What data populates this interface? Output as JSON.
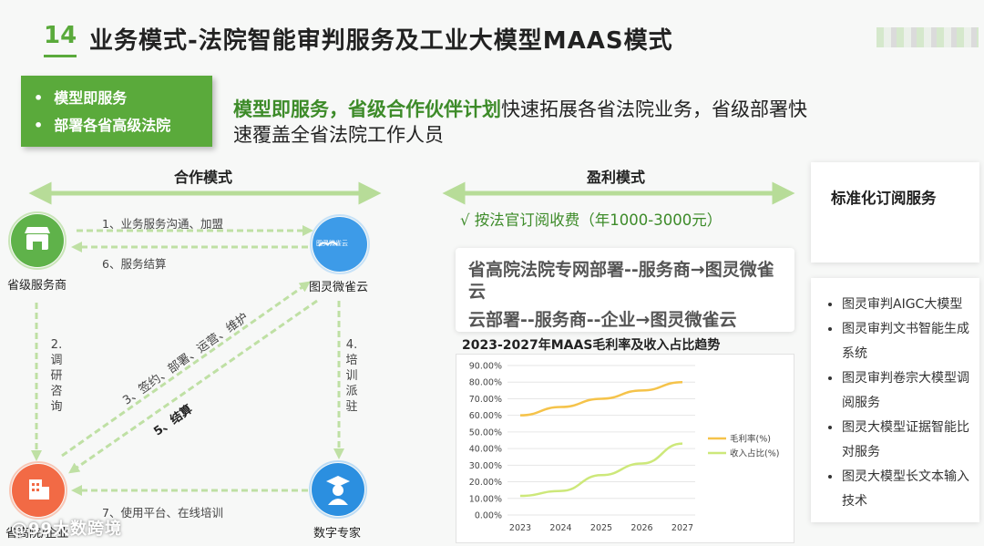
{
  "header": {
    "number": "14",
    "title": "业务模式-法院智能审判服务及工业大模型MAAS模式"
  },
  "green_box": {
    "items": [
      "模型即服务",
      "部署各省高级法院"
    ]
  },
  "headline": {
    "highlight": "模型即服务，省级合作伙伴计划",
    "rest": "快速拓展各省法院业务，省级部署快速覆盖全省法院工作人员"
  },
  "cooperation": {
    "title": "合作模式",
    "nodes": {
      "provincial_provider": "省级服务商",
      "turing_cloud": "图灵微雀云",
      "court_enterprise": "省高院/企业",
      "digital_expert": "数字专家",
      "cloud_logo_text": "图灵微雀云"
    },
    "edges": {
      "e1": "1、业务服务沟通、加盟",
      "e6": "6、服务结算",
      "e2_chars": [
        "2.",
        "调",
        "研",
        "咨",
        "询"
      ],
      "e4_chars": [
        "4.",
        "培",
        "训",
        "派",
        "驻"
      ],
      "e3": "3、签约、部署、运营、维护",
      "e5": "5、结算",
      "e7": "7、使用平台、在线培训"
    }
  },
  "profit": {
    "title": "盈利模式",
    "fee": "√  按法官订阅收费（年1000-3000元）",
    "deploy_line1": "省高院法院专网部署--服务商→图灵微雀云",
    "deploy_line2": "云部署--服务商--企业→图灵微雀云"
  },
  "chart_data": {
    "type": "line",
    "title": "2023-2027年MAAS毛利率及收入占比趋势",
    "categories": [
      "2023",
      "2024",
      "2025",
      "2026",
      "2027"
    ],
    "y_ticks": [
      "0.00%",
      "10.00%",
      "20.00%",
      "30.00%",
      "40.00%",
      "50.00%",
      "60.00%",
      "70.00%",
      "80.00%",
      "90.00%"
    ],
    "ylim": [
      0,
      90
    ],
    "grid": true,
    "legend_position": "right",
    "series": [
      {
        "name": "毛利率(%)",
        "values": [
          60,
          65,
          70,
          75,
          80
        ],
        "color": "#f5c34a"
      },
      {
        "name": "收入占比(%)",
        "values": [
          11.5,
          14.5,
          24,
          31,
          43
        ],
        "color": "#cde87a"
      }
    ]
  },
  "subscription": {
    "title": "标准化订阅服务",
    "items": [
      "图灵审判AIGC大模型",
      "图灵审判文书智能生成系统",
      "图灵审判卷宗大模型调阅服务",
      "图灵大模型证据智能比对服务",
      "图灵大模型长文本输入技术"
    ]
  },
  "watermark": "@99大数跨境",
  "colors": {
    "accent_green": "#5aaa3b",
    "arrow_green": "#bfe0a4",
    "node_orange": "#f26a45",
    "node_blue": "#2b8fe0"
  }
}
